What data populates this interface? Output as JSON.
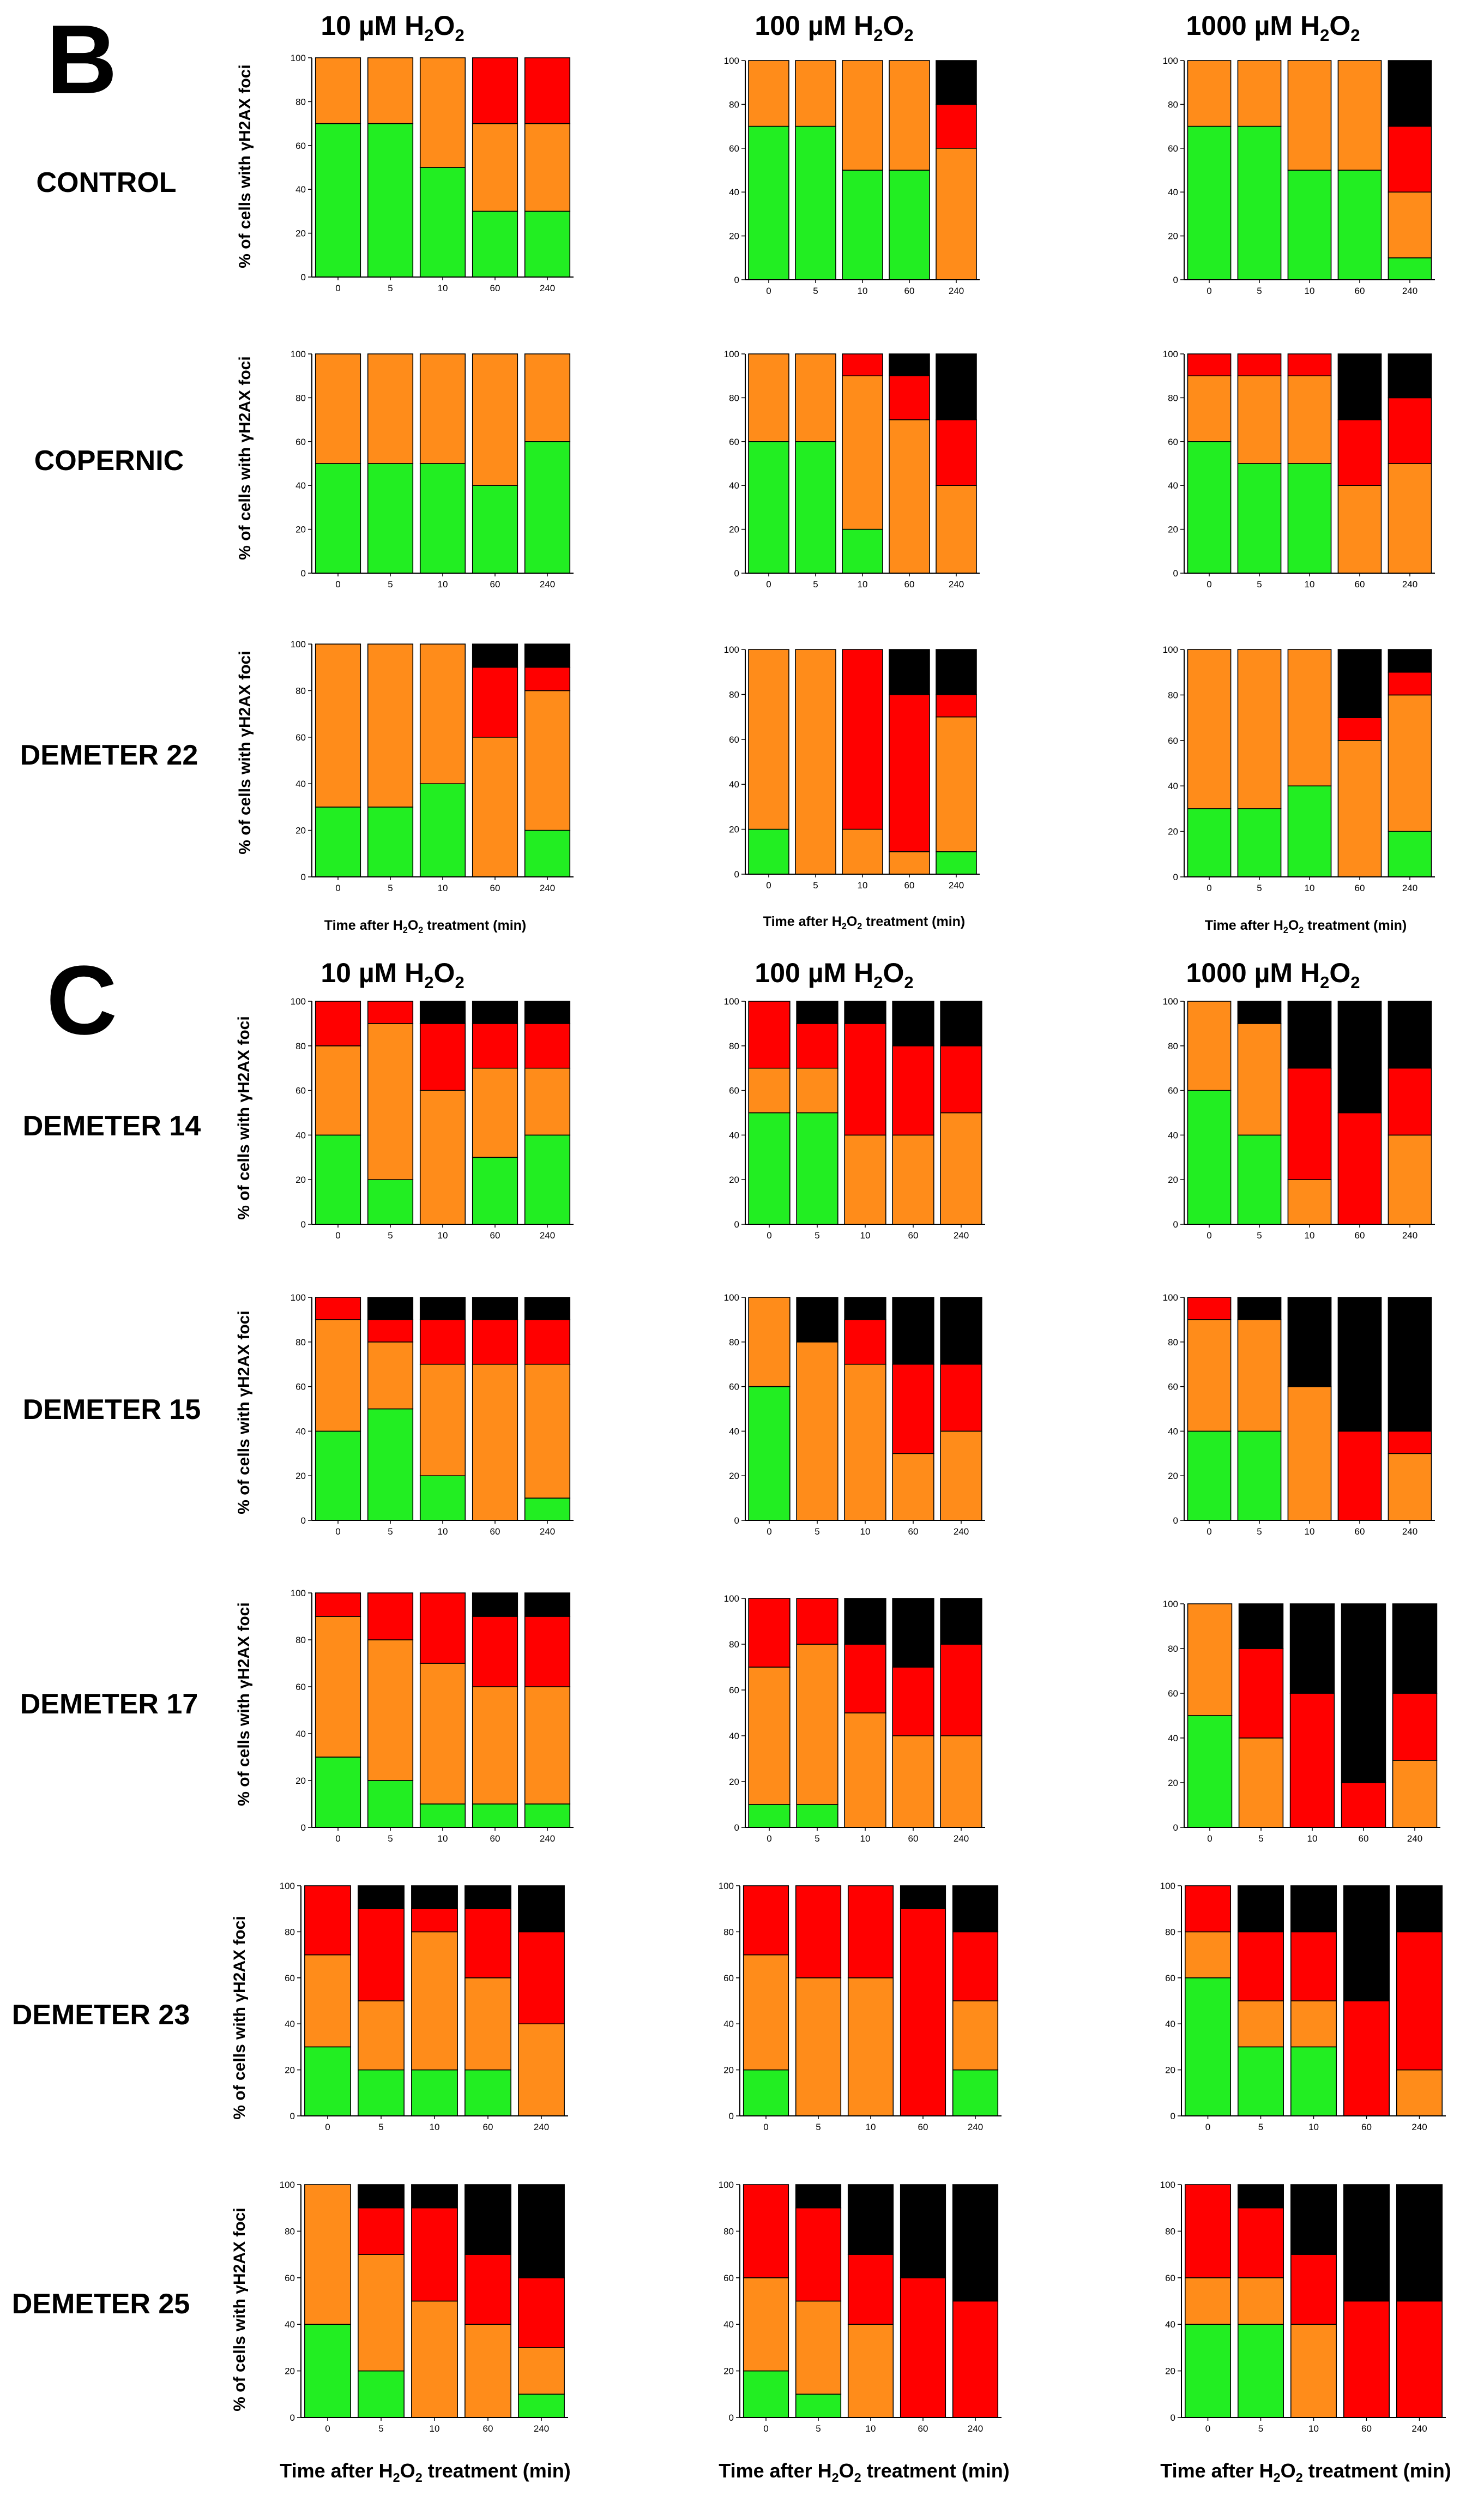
{
  "sections": [
    {
      "letter": "B",
      "titles": [
        {
          "pre": "10 µM H",
          "sub": "2",
          "post": "O",
          "sub2": "2"
        },
        {
          "pre": "100 µM H",
          "sub": "2",
          "post": "O",
          "sub2": "2"
        },
        {
          "pre": "1000 µM H",
          "sub": "2",
          "post": "O",
          "sub2": "2"
        }
      ]
    },
    {
      "letter": "C",
      "titles": [
        {
          "pre": "10 µM H",
          "sub": "2",
          "post": "O",
          "sub2": "2"
        },
        {
          "pre": "100 µM H",
          "sub": "2",
          "post": "O",
          "sub2": "2"
        },
        {
          "pre": "1000 µM H",
          "sub": "2",
          "post": "O",
          "sub2": "2"
        }
      ]
    }
  ],
  "row_labels": [
    "CONTROL",
    "COPERNIC",
    "DEMETER 22",
    "DEMETER 14",
    "DEMETER 15",
    "DEMETER 17",
    "DEMETER 23",
    "DEMETER 25"
  ],
  "ylabel": "% of cells with γH2AX foci",
  "xlabel": {
    "pre": "Time after H",
    "sub": "2",
    "mid": "O",
    "sub2": "2",
    "post": " treatment (min)"
  },
  "colors": {
    "green": "#22ee22",
    "orange": "#ff8c1a",
    "red": "#ff0000",
    "black": "#000000"
  },
  "chart_data": {
    "type": "bar",
    "stacked": true,
    "categories": [
      "0",
      "5",
      "10",
      "60",
      "240"
    ],
    "ylim": [
      0,
      100
    ],
    "yticks": [
      "0",
      "20",
      "40",
      "60",
      "80",
      "100"
    ],
    "series_order": [
      "green",
      "orange",
      "red",
      "black"
    ],
    "panels": [
      {
        "row": "CONTROL",
        "dose": "10 µM H2O2",
        "green": [
          70,
          70,
          50,
          30,
          30
        ],
        "orange": [
          30,
          30,
          50,
          40,
          40
        ],
        "red": [
          0,
          0,
          0,
          30,
          30
        ],
        "black": [
          0,
          0,
          0,
          0,
          0
        ]
      },
      {
        "row": "CONTROL",
        "dose": "100 µM H2O2",
        "green": [
          70,
          70,
          50,
          50,
          0
        ],
        "orange": [
          30,
          30,
          50,
          50,
          60
        ],
        "red": [
          0,
          0,
          0,
          0,
          20
        ],
        "black": [
          0,
          0,
          0,
          0,
          20
        ]
      },
      {
        "row": "CONTROL",
        "dose": "1000 µM H2O2",
        "green": [
          70,
          70,
          50,
          50,
          10
        ],
        "orange": [
          30,
          30,
          50,
          50,
          30
        ],
        "red": [
          0,
          0,
          0,
          0,
          30
        ],
        "black": [
          0,
          0,
          0,
          0,
          30
        ]
      },
      {
        "row": "COPERNIC",
        "dose": "10 µM H2O2",
        "green": [
          50,
          50,
          50,
          40,
          60
        ],
        "orange": [
          50,
          50,
          50,
          60,
          40
        ],
        "red": [
          0,
          0,
          0,
          0,
          0
        ],
        "black": [
          0,
          0,
          0,
          0,
          0
        ]
      },
      {
        "row": "COPERNIC",
        "dose": "100 µM H2O2",
        "green": [
          60,
          60,
          20,
          0,
          0
        ],
        "orange": [
          40,
          40,
          70,
          70,
          40
        ],
        "red": [
          0,
          0,
          10,
          20,
          30
        ],
        "black": [
          0,
          0,
          0,
          10,
          30
        ]
      },
      {
        "row": "COPERNIC",
        "dose": "1000 µM H2O2",
        "green": [
          60,
          50,
          50,
          0,
          0
        ],
        "orange": [
          30,
          40,
          40,
          40,
          50
        ],
        "red": [
          10,
          10,
          10,
          30,
          30
        ],
        "black": [
          0,
          0,
          0,
          30,
          20
        ]
      },
      {
        "row": "DEMETER 22",
        "dose": "10 µM H2O2",
        "green": [
          30,
          30,
          40,
          0,
          20
        ],
        "orange": [
          70,
          70,
          60,
          60,
          60
        ],
        "red": [
          0,
          0,
          0,
          30,
          10
        ],
        "black": [
          0,
          0,
          0,
          10,
          10
        ]
      },
      {
        "row": "DEMETER 22",
        "dose": "100 µM H2O2",
        "green": [
          20,
          0,
          0,
          0,
          10
        ],
        "orange": [
          80,
          100,
          20,
          10,
          60
        ],
        "red": [
          0,
          0,
          80,
          70,
          10
        ],
        "black": [
          0,
          0,
          0,
          20,
          20
        ]
      },
      {
        "row": "DEMETER 22",
        "dose": "1000 µM H2O2",
        "green": [
          30,
          30,
          40,
          0,
          20
        ],
        "orange": [
          70,
          70,
          60,
          60,
          60
        ],
        "red": [
          0,
          0,
          0,
          10,
          10
        ],
        "black": [
          0,
          0,
          0,
          30,
          10
        ]
      },
      {
        "row": "DEMETER 14",
        "dose": "10 µM H2O2",
        "green": [
          40,
          20,
          0,
          30,
          40
        ],
        "orange": [
          40,
          70,
          60,
          40,
          30
        ],
        "red": [
          20,
          10,
          30,
          20,
          20
        ],
        "black": [
          0,
          0,
          10,
          10,
          10
        ]
      },
      {
        "row": "DEMETER 14",
        "dose": "100 µM H2O2",
        "green": [
          50,
          50,
          0,
          0,
          0
        ],
        "orange": [
          20,
          20,
          40,
          40,
          50
        ],
        "red": [
          30,
          20,
          50,
          40,
          30
        ],
        "black": [
          0,
          10,
          10,
          20,
          20
        ]
      },
      {
        "row": "DEMETER 14",
        "dose": "1000 µM H2O2",
        "green": [
          60,
          40,
          0,
          0,
          0
        ],
        "orange": [
          40,
          50,
          20,
          0,
          40
        ],
        "red": [
          0,
          0,
          50,
          50,
          30
        ],
        "black": [
          0,
          10,
          30,
          50,
          30
        ]
      },
      {
        "row": "DEMETER 15",
        "dose": "10 µM H2O2",
        "green": [
          40,
          50,
          20,
          0,
          10
        ],
        "orange": [
          50,
          30,
          50,
          70,
          60
        ],
        "red": [
          10,
          10,
          20,
          20,
          20
        ],
        "black": [
          0,
          10,
          10,
          10,
          10
        ]
      },
      {
        "row": "DEMETER 15",
        "dose": "100 µM H2O2",
        "green": [
          60,
          0,
          0,
          0,
          0
        ],
        "orange": [
          40,
          80,
          70,
          30,
          40
        ],
        "red": [
          0,
          0,
          20,
          40,
          30
        ],
        "black": [
          0,
          20,
          10,
          30,
          30
        ]
      },
      {
        "row": "DEMETER 15",
        "dose": "1000 µM H2O2",
        "green": [
          40,
          40,
          0,
          0,
          0
        ],
        "orange": [
          50,
          50,
          60,
          0,
          30
        ],
        "red": [
          10,
          0,
          0,
          40,
          10
        ],
        "black": [
          0,
          10,
          40,
          60,
          60
        ]
      },
      {
        "row": "DEMETER 17",
        "dose": "10 µM H2O2",
        "green": [
          30,
          20,
          10,
          10,
          10
        ],
        "orange": [
          60,
          60,
          60,
          50,
          50
        ],
        "red": [
          10,
          20,
          30,
          30,
          30
        ],
        "black": [
          0,
          0,
          0,
          10,
          10
        ]
      },
      {
        "row": "DEMETER 17",
        "dose": "100 µM H2O2",
        "green": [
          10,
          10,
          0,
          0,
          0
        ],
        "orange": [
          60,
          70,
          50,
          40,
          40
        ],
        "red": [
          30,
          20,
          30,
          30,
          40
        ],
        "black": [
          0,
          0,
          20,
          30,
          20
        ]
      },
      {
        "row": "DEMETER 17",
        "dose": "1000 µM H2O2",
        "green": [
          50,
          0,
          0,
          0,
          0
        ],
        "orange": [
          50,
          40,
          0,
          0,
          30
        ],
        "red": [
          0,
          40,
          60,
          20,
          30
        ],
        "black": [
          0,
          20,
          40,
          80,
          40
        ]
      },
      {
        "row": "DEMETER 23",
        "dose": "10 µM H2O2",
        "green": [
          30,
          20,
          20,
          20,
          0
        ],
        "orange": [
          40,
          30,
          60,
          40,
          40
        ],
        "red": [
          30,
          40,
          10,
          30,
          40
        ],
        "black": [
          0,
          10,
          10,
          10,
          20
        ]
      },
      {
        "row": "DEMETER 23",
        "dose": "100 µM H2O2",
        "green": [
          20,
          0,
          0,
          0,
          20
        ],
        "orange": [
          50,
          60,
          60,
          0,
          30
        ],
        "red": [
          30,
          40,
          40,
          90,
          30
        ],
        "black": [
          0,
          0,
          0,
          10,
          20
        ]
      },
      {
        "row": "DEMETER 23",
        "dose": "1000 µM H2O2",
        "green": [
          60,
          30,
          30,
          0,
          0
        ],
        "orange": [
          20,
          20,
          20,
          0,
          20
        ],
        "red": [
          20,
          30,
          30,
          50,
          60
        ],
        "black": [
          0,
          20,
          20,
          50,
          20
        ]
      },
      {
        "row": "DEMETER 25",
        "dose": "10 µM H2O2",
        "green": [
          40,
          20,
          0,
          0,
          10
        ],
        "orange": [
          60,
          50,
          50,
          40,
          20
        ],
        "red": [
          0,
          20,
          40,
          30,
          30
        ],
        "black": [
          0,
          10,
          10,
          30,
          40
        ]
      },
      {
        "row": "DEMETER 25",
        "dose": "100 µM H2O2",
        "green": [
          20,
          10,
          0,
          0,
          0
        ],
        "orange": [
          40,
          40,
          40,
          0,
          0
        ],
        "red": [
          40,
          40,
          30,
          60,
          50
        ],
        "black": [
          0,
          10,
          30,
          40,
          50
        ]
      },
      {
        "row": "DEMETER 25",
        "dose": "1000 µM H2O2",
        "green": [
          40,
          40,
          0,
          0,
          0
        ],
        "orange": [
          20,
          20,
          40,
          0,
          0
        ],
        "red": [
          40,
          30,
          30,
          50,
          50
        ],
        "black": [
          0,
          10,
          30,
          50,
          50
        ]
      }
    ]
  }
}
